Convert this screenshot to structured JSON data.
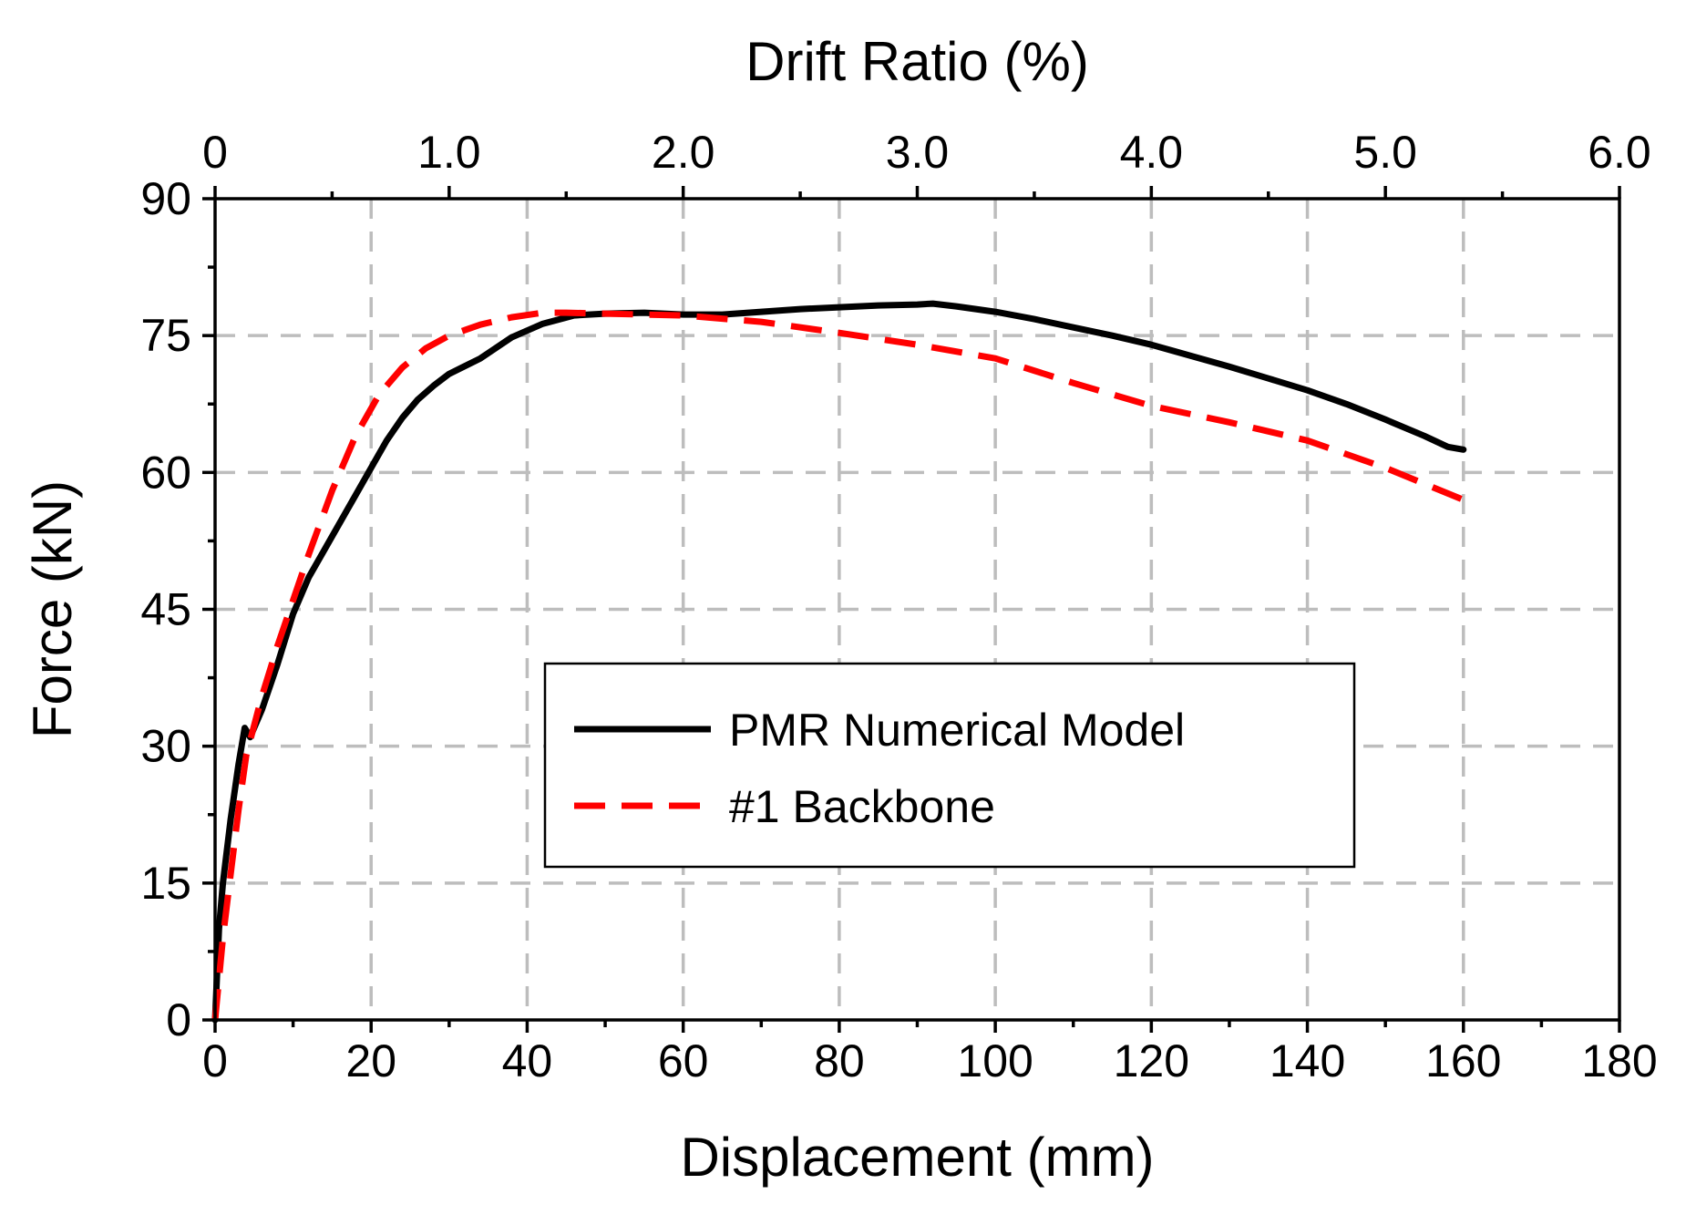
{
  "chart_data": {
    "type": "line",
    "xlabel": "Displacement (mm)",
    "ylabel": "Force (kN)",
    "x2label": "Drift Ratio (%)",
    "xlim": [
      0,
      180
    ],
    "ylim": [
      0,
      90
    ],
    "x2lim": [
      0,
      6.0
    ],
    "xticks": [
      "0",
      "20",
      "40",
      "60",
      "80",
      "100",
      "120",
      "140",
      "160",
      "180"
    ],
    "yticks": [
      "0",
      "15",
      "30",
      "45",
      "60",
      "75",
      "90"
    ],
    "x2ticks": [
      "0",
      "1.0",
      "2.0",
      "3.0",
      "4.0",
      "5.0",
      "6.0"
    ],
    "xtick_values": [
      0,
      20,
      40,
      60,
      80,
      100,
      120,
      140,
      160,
      180
    ],
    "ytick_values": [
      0,
      15,
      30,
      45,
      60,
      75,
      90
    ],
    "x2tick_values": [
      0,
      1,
      2,
      3,
      4,
      5,
      6
    ],
    "grid": true,
    "legend_position": "center-right",
    "series": [
      {
        "name": "PMR Numerical Model",
        "color": "#000000",
        "style": "solid",
        "x": [
          0,
          0.5,
          1,
          2,
          3,
          3.8,
          4.5,
          5,
          6,
          8,
          10,
          12,
          14,
          16,
          18,
          20,
          22,
          24,
          26,
          28,
          30,
          34,
          38,
          42,
          46,
          50,
          55,
          60,
          65,
          70,
          75,
          80,
          85,
          90,
          92,
          95,
          100,
          105,
          110,
          115,
          120,
          125,
          130,
          135,
          140,
          145,
          150,
          155,
          158,
          160
        ],
        "y": [
          0,
          10,
          15,
          22,
          28,
          32,
          31,
          32,
          34,
          39,
          44.5,
          48.5,
          51.5,
          54.5,
          57.5,
          60.5,
          63.5,
          66,
          68,
          69.5,
          70.8,
          72.5,
          74.8,
          76.3,
          77.2,
          77.4,
          77.5,
          77.3,
          77.3,
          77.6,
          77.9,
          78.1,
          78.3,
          78.4,
          78.5,
          78.2,
          77.6,
          76.8,
          75.9,
          75,
          74,
          72.8,
          71.6,
          70.3,
          69,
          67.5,
          65.8,
          64,
          62.8,
          62.5
        ]
      },
      {
        "name": "#1 Backbone",
        "color": "#ff0000",
        "style": "dashed",
        "x": [
          0,
          1,
          2,
          3,
          4,
          6,
          8,
          10,
          12,
          15,
          18,
          21,
          24,
          27,
          30,
          34,
          38,
          42,
          45,
          50,
          60,
          70,
          80,
          90,
          100,
          110,
          120,
          130,
          140,
          150,
          160
        ],
        "y": [
          0,
          9,
          16,
          23,
          29,
          35.5,
          41,
          46,
          51,
          58,
          64,
          68.5,
          71.5,
          73.6,
          75,
          76.2,
          77,
          77.5,
          77.5,
          77.4,
          77.2,
          76.5,
          75.3,
          74,
          72.5,
          69.8,
          67.3,
          65.5,
          63.5,
          60.5,
          57
        ]
      }
    ]
  }
}
